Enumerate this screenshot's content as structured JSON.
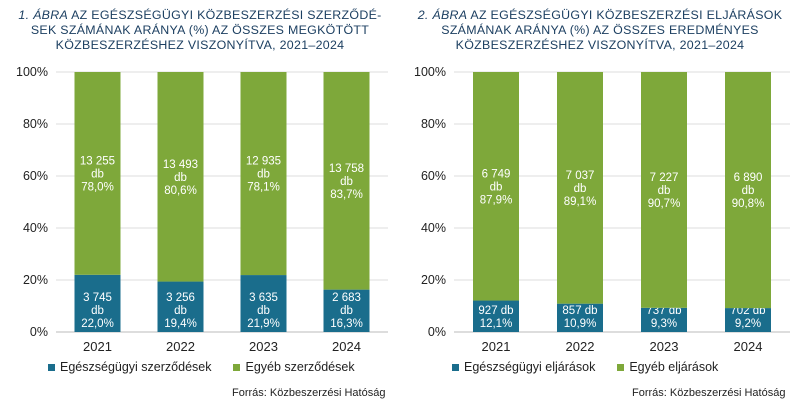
{
  "charts": [
    {
      "title_num": "1. ÁBRA",
      "title_rest_1": " AZ EGÉSZSÉGÜGYI KÖZBESZERZÉSI SZERZŐDÉ-",
      "title_line_2": "SEK SZÁMÁNAK ARÁNYA (%) AZ ÖSSZES MEGKÖTÖTT",
      "title_line_3": "KÖZBESZERZÉSHEZ VISZONYÍTVA, 2021–2024",
      "legend": [
        "Egészségügyi szerződések",
        "Egyéb szerződések"
      ],
      "source": "Forrás: Közbeszerzési Hatóság"
    },
    {
      "title_num": "2. ÁBRA",
      "title_rest_1": " AZ EGÉSZSÉGÜGYI KÖZBESZERZÉSI ELJÁRÁSOK",
      "title_line_2": "SZÁMÁNAK ARÁNYA (%) AZ ÖSSZES EREDMÉNYES",
      "title_line_3": "KÖZBESZERZÉSHEZ VISZONYÍTVA, 2021–2024",
      "legend": [
        "Egészségügyi eljárások",
        "Egyéb eljárások"
      ],
      "source": "Forrás: Közbeszerzési Hatóság"
    }
  ],
  "colors": {
    "health": "#1a6d8c",
    "other": "#7ea83a"
  },
  "chart_data": [
    {
      "type": "bar",
      "stacked": true,
      "title": "1. ÁBRA AZ EGÉSZSÉGÜGYI KÖZBESZERZÉSI SZERZŐDÉSEK SZÁMÁNAK ARÁNYA (%) AZ ÖSSZES MEGKÖTÖTT KÖZBESZERZÉSHEZ VISZONYÍTVA, 2021–2024",
      "categories": [
        "2021",
        "2022",
        "2023",
        "2024"
      ],
      "ylim": [
        0,
        100
      ],
      "yticks": [
        "0%",
        "20%",
        "40%",
        "60%",
        "80%",
        "100%"
      ],
      "grid": true,
      "legend_position": "bottom",
      "series": [
        {
          "name": "Egészségügyi szerződések",
          "values": [
            22.0,
            19.4,
            21.9,
            16.3
          ],
          "labels": [
            [
              "3 745",
              "db",
              "22,0%"
            ],
            [
              "3 256",
              "db",
              "19,4%"
            ],
            [
              "3 635",
              "db",
              "21,9%"
            ],
            [
              "2 683",
              "db",
              "16,3%"
            ]
          ]
        },
        {
          "name": "Egyéb szerződések",
          "values": [
            78.0,
            80.6,
            78.1,
            83.7
          ],
          "labels": [
            [
              "13 255",
              "db",
              "78,0%"
            ],
            [
              "13 493",
              "db",
              "80,6%"
            ],
            [
              "12 935",
              "db",
              "78,1%"
            ],
            [
              "13 758",
              "db",
              "83,7%"
            ]
          ]
        }
      ]
    },
    {
      "type": "bar",
      "stacked": true,
      "title": "2. ÁBRA AZ EGÉSZSÉGÜGYI KÖZBESZERZÉSI ELJÁRÁSOK SZÁMÁNAK ARÁNYA (%) AZ ÖSSZES EREDMÉNYES KÖZBESZERZÉSHEZ VISZONYÍTVA, 2021–2024",
      "categories": [
        "2021",
        "2022",
        "2023",
        "2024"
      ],
      "ylim": [
        0,
        100
      ],
      "yticks": [
        "0%",
        "20%",
        "40%",
        "60%",
        "80%",
        "100%"
      ],
      "grid": true,
      "legend_position": "bottom",
      "series": [
        {
          "name": "Egészségügyi eljárások",
          "values": [
            12.1,
            10.9,
            9.3,
            9.2
          ],
          "labels": [
            [
              "927 db",
              "12,1%"
            ],
            [
              "857 db",
              "10,9%"
            ],
            [
              "737 db",
              "9,3%"
            ],
            [
              "702 db",
              "9,2%"
            ]
          ]
        },
        {
          "name": "Egyéb eljárások",
          "values": [
            87.9,
            89.1,
            90.7,
            90.8
          ],
          "labels": [
            [
              "6 749",
              "db",
              "87,9%"
            ],
            [
              "7 037",
              "db",
              "89,1%"
            ],
            [
              "7 227",
              "db",
              "90,7%"
            ],
            [
              "6 890",
              "db",
              "90,8%"
            ]
          ]
        }
      ]
    }
  ]
}
